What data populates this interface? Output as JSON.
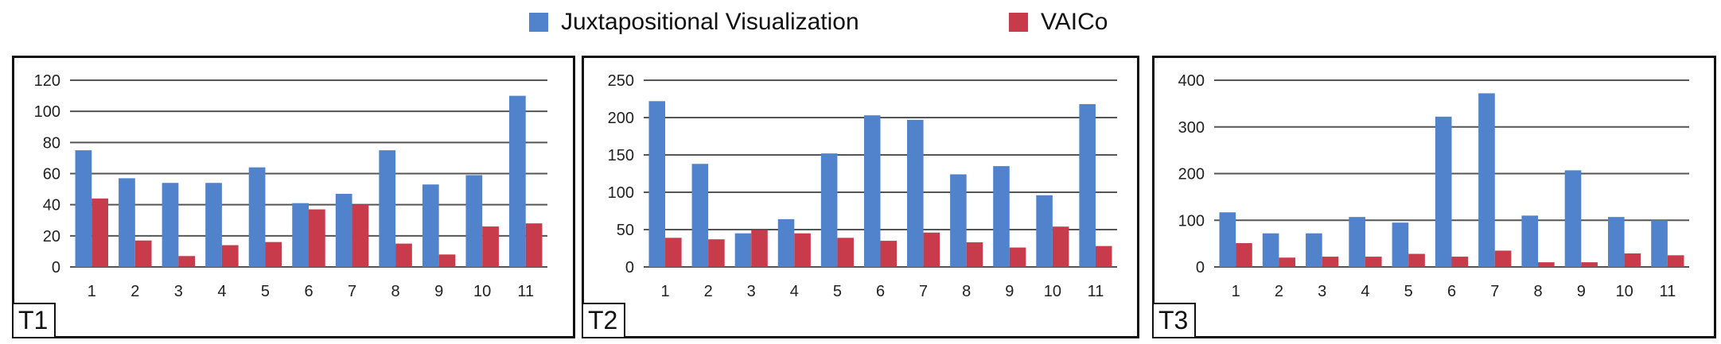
{
  "legend": [
    {
      "name": "Juxtapositional Visualization",
      "color": "#5182cc"
    },
    {
      "name": "VAICo",
      "color": "#c73b4a"
    }
  ],
  "chart_data": [
    {
      "type": "bar",
      "panel_label": "T1",
      "categories": [
        "1",
        "2",
        "3",
        "4",
        "5",
        "6",
        "7",
        "8",
        "9",
        "10",
        "11"
      ],
      "ylim": [
        0,
        120
      ],
      "yticks": [
        0,
        20,
        40,
        60,
        80,
        100,
        120
      ],
      "series": [
        {
          "name": "Juxtapositional Visualization",
          "values": [
            75,
            57,
            54,
            54,
            64,
            41,
            47,
            75,
            53,
            59,
            110
          ]
        },
        {
          "name": "VAICo",
          "values": [
            44,
            17,
            7,
            14,
            16,
            37,
            40,
            15,
            8,
            26,
            28
          ]
        }
      ]
    },
    {
      "type": "bar",
      "panel_label": "T2",
      "categories": [
        "1",
        "2",
        "3",
        "4",
        "5",
        "6",
        "7",
        "8",
        "9",
        "10",
        "11"
      ],
      "ylim": [
        0,
        250
      ],
      "yticks": [
        0,
        50,
        100,
        150,
        200,
        250
      ],
      "series": [
        {
          "name": "Juxtapositional Visualization",
          "values": [
            222,
            138,
            45,
            64,
            152,
            203,
            197,
            124,
            135,
            96,
            218
          ]
        },
        {
          "name": "VAICo",
          "values": [
            39,
            37,
            49,
            45,
            39,
            35,
            46,
            33,
            26,
            54,
            28
          ]
        }
      ]
    },
    {
      "type": "bar",
      "panel_label": "T3",
      "categories": [
        "1",
        "2",
        "3",
        "4",
        "5",
        "6",
        "7",
        "8",
        "9",
        "10",
        "11"
      ],
      "ylim": [
        0,
        400
      ],
      "yticks": [
        0,
        100,
        200,
        300,
        400
      ],
      "series": [
        {
          "name": "Juxtapositional Visualization",
          "values": [
            117,
            72,
            72,
            107,
            95,
            322,
            372,
            110,
            207,
            107,
            100
          ]
        },
        {
          "name": "VAICo",
          "values": [
            51,
            20,
            22,
            22,
            28,
            22,
            35,
            10,
            10,
            29,
            25
          ]
        }
      ]
    }
  ]
}
